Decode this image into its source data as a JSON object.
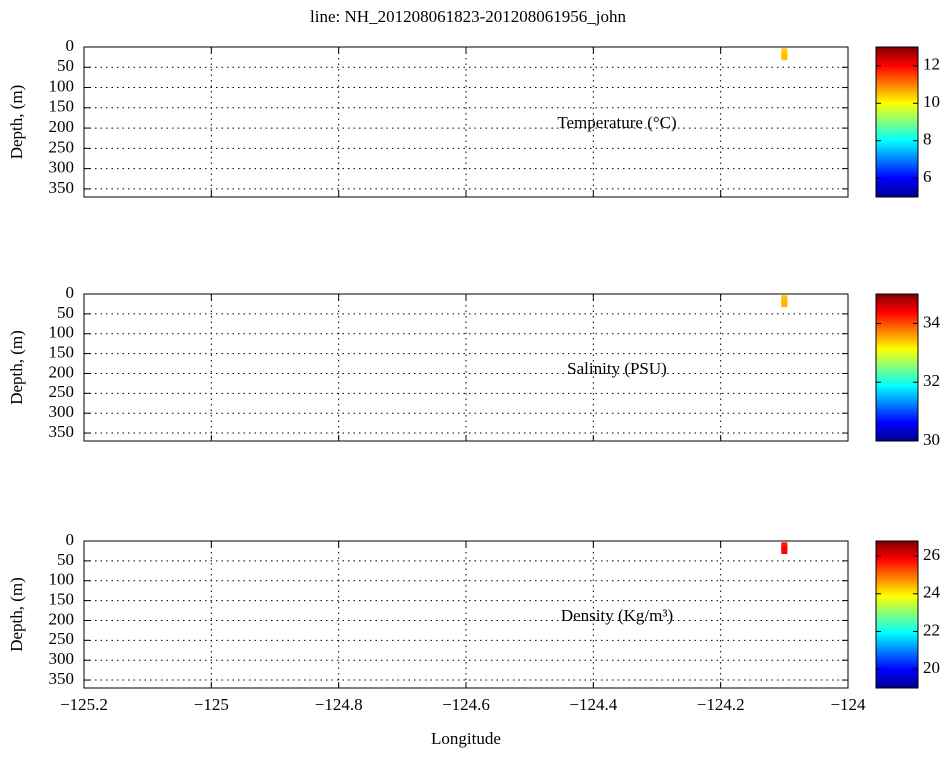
{
  "title": "line: NH_201208061823-201208061956_john",
  "chart_data": [
    {
      "type": "scatter",
      "label": "Temperature (°C)",
      "ylabel": "Depth, (m)",
      "xlim": [
        -125.2,
        -124
      ],
      "xticks": [
        -125.2,
        -125,
        -124.8,
        -124.6,
        -124.4,
        -124.2,
        -124
      ],
      "ylim": [
        0,
        370
      ],
      "y_inverted": true,
      "yticks": [
        0,
        50,
        100,
        150,
        200,
        250,
        300,
        350
      ],
      "grid": true,
      "x": [
        -124.1,
        -124.1,
        -124.1
      ],
      "y": [
        12,
        18,
        24
      ],
      "values": [
        10.4,
        10.4,
        10.5
      ],
      "colormap": "jet",
      "clim": [
        5,
        13
      ],
      "cticks": [
        6,
        8,
        10,
        12
      ]
    },
    {
      "type": "scatter",
      "label": "Salinity (PSU)",
      "ylabel": "Depth, (m)",
      "xlim": [
        -125.2,
        -124
      ],
      "xticks": [
        -125.2,
        -125,
        -124.8,
        -124.6,
        -124.4,
        -124.2,
        -124
      ],
      "ylim": [
        0,
        370
      ],
      "y_inverted": true,
      "yticks": [
        0,
        50,
        100,
        150,
        200,
        250,
        300,
        350
      ],
      "grid": true,
      "x": [
        -124.1,
        -124.1,
        -124.1
      ],
      "y": [
        12,
        18,
        24
      ],
      "values": [
        33.4,
        33.4,
        33.5
      ],
      "colormap": "jet",
      "clim": [
        30,
        35
      ],
      "cticks": [
        30,
        32,
        34
      ]
    },
    {
      "type": "scatter",
      "label": "Density (Kg/m³)",
      "ylabel": "Depth, (m)",
      "xlabel": "Longitude",
      "xlim": [
        -125.2,
        -124
      ],
      "xticks": [
        {
          "value": -125.2,
          "label": "−125.2"
        },
        {
          "value": -125,
          "label": "−125"
        },
        {
          "value": -124.8,
          "label": "−124.8"
        },
        {
          "value": -124.6,
          "label": "−124.6"
        },
        {
          "value": -124.4,
          "label": "−124.4"
        },
        {
          "value": -124.2,
          "label": "−124.2"
        },
        {
          "value": -124,
          "label": "−124"
        }
      ],
      "ylim": [
        0,
        370
      ],
      "y_inverted": true,
      "yticks": [
        0,
        50,
        100,
        150,
        200,
        250,
        300,
        350
      ],
      "grid": true,
      "x": [
        -124.1,
        -124.1,
        -124.1
      ],
      "y": [
        12,
        18,
        24
      ],
      "values": [
        25.6,
        25.7,
        25.8
      ],
      "colormap": "jet",
      "clim": [
        19,
        26.8
      ],
      "cticks": [
        20,
        22,
        24,
        26
      ]
    }
  ]
}
